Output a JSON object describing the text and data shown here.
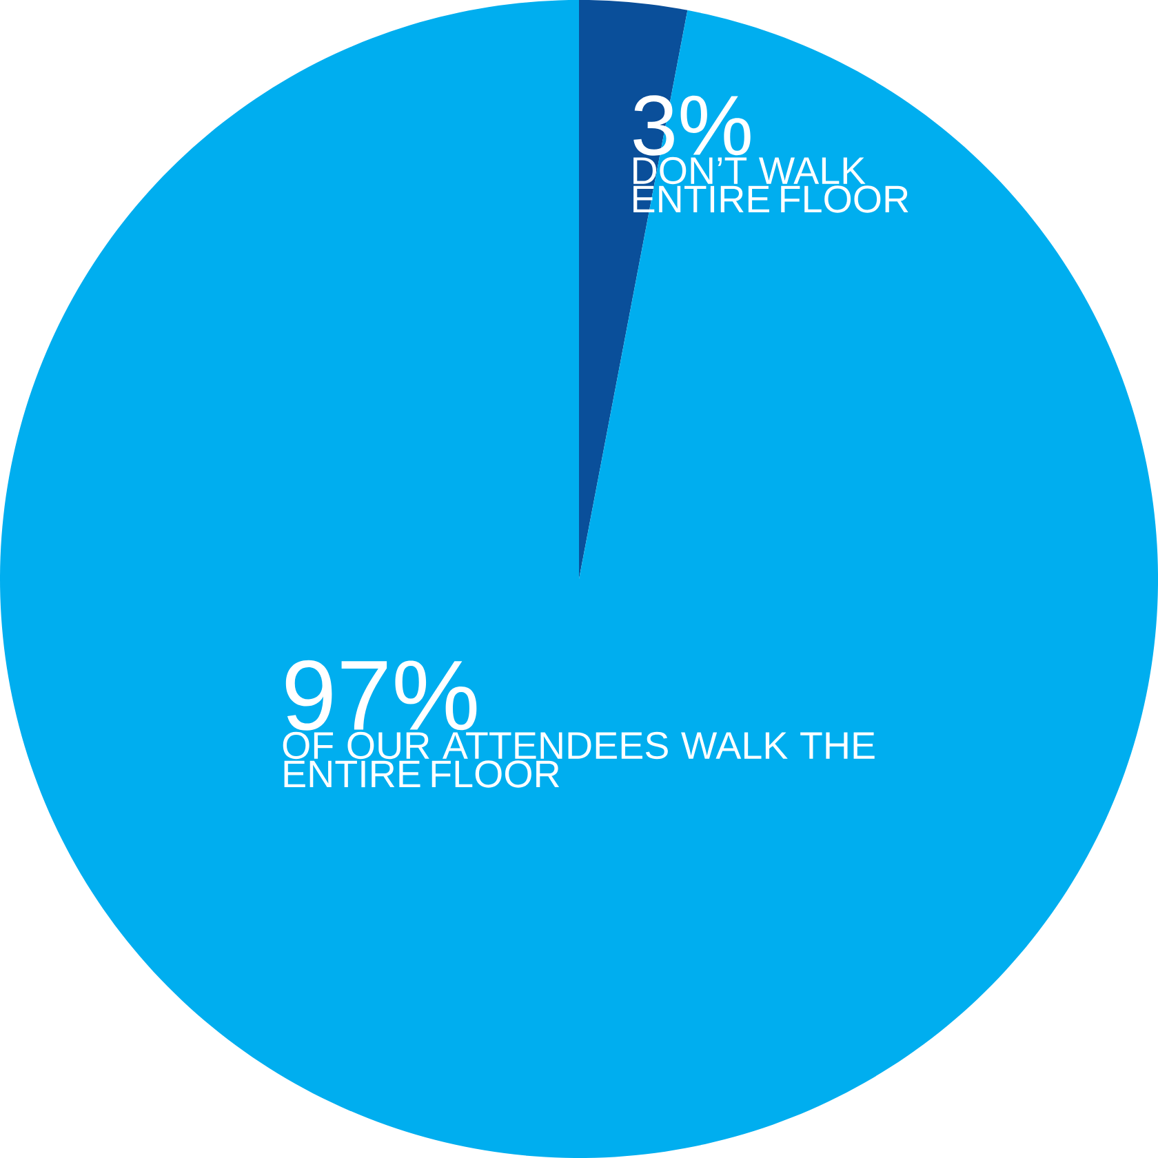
{
  "chart_data": {
    "type": "pie",
    "categories": [
      "DON’T WALK ENTIRE FLOOR",
      "OF OUR ATTENDEES WALK THE ENTIRE FLOOR"
    ],
    "values": [
      3,
      97
    ],
    "value_labels": [
      "3%",
      "97%"
    ],
    "colors": [
      "#0a4f9a",
      "#00aeef"
    ]
  }
}
